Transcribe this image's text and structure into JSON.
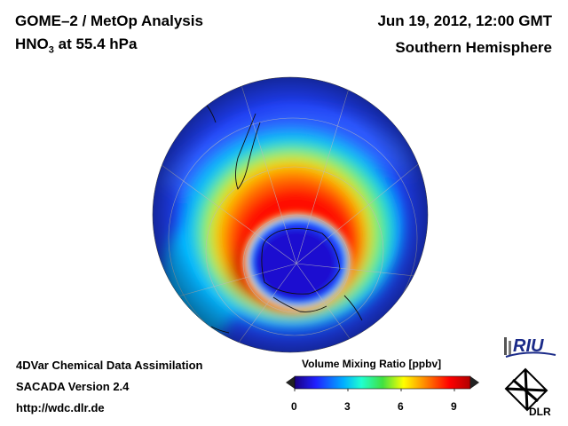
{
  "header": {
    "title_line1": "GOME–2 / MetOp Analysis",
    "title_species": "HNO",
    "title_sub": "3",
    "title_rest": " at 55.4 hPa",
    "date": "Jun 19, 2012, 12:00 GMT",
    "region": "Southern Hemisphere"
  },
  "footer": {
    "line1": "4DVar Chemical Data Assimilation",
    "line2": "SACADA Version 2.4",
    "line3": "http://wdc.dlr.de"
  },
  "colorbar": {
    "title": "Volume Mixing Ratio [ppbv]",
    "ticks": [
      "0",
      "3",
      "6",
      "9"
    ]
  },
  "logos": {
    "riu": "RIU",
    "dlr": "DLR"
  },
  "colors": {
    "background": "#ffffff",
    "scale": [
      "#1a0080",
      "#2020ff",
      "#00b0ff",
      "#20ffd0",
      "#40e040",
      "#ffff00",
      "#ff8000",
      "#ff0000",
      "#b00000"
    ]
  }
}
